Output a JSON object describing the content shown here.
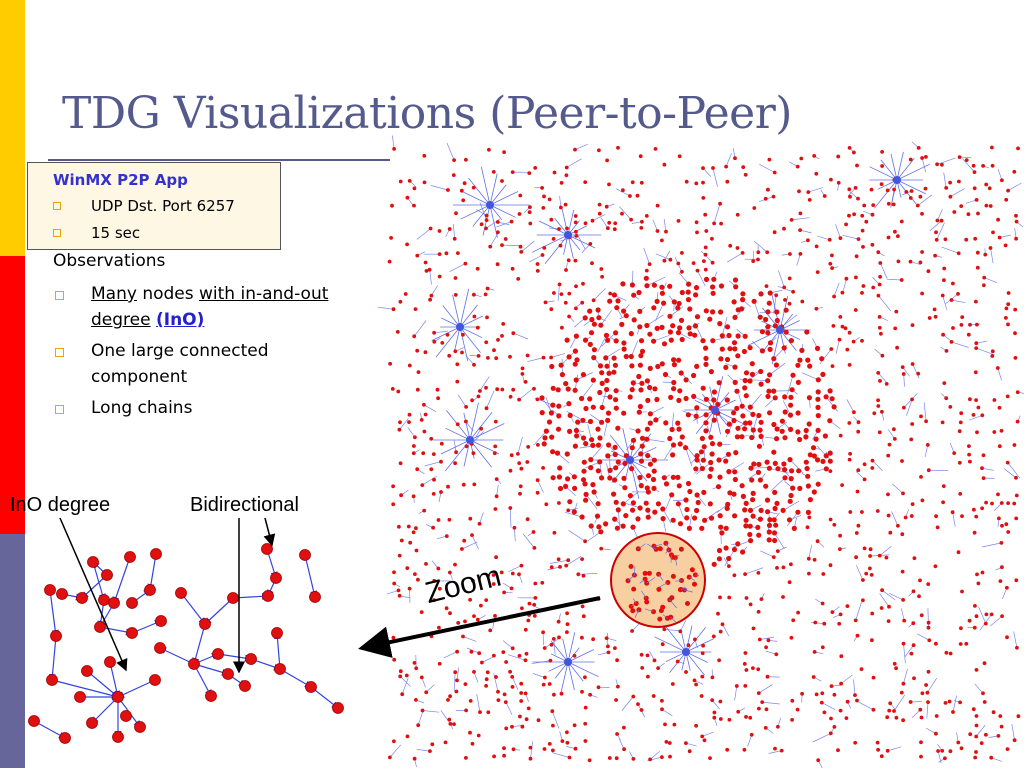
{
  "slide": {
    "title": "TDG Visualizations (Peer-to-Peer)",
    "accent_colors": {
      "yellow": "#ffcc00",
      "red": "#ff0000",
      "blue": "#66669a",
      "title": "#555a8c",
      "node": "#e01010",
      "edge": "#3344dd",
      "zoom_circle": "#f8cfa0"
    }
  },
  "infobox": {
    "heading": "WinMX P2P App",
    "items": [
      "UDP Dst. Port 6257",
      "15 sec"
    ]
  },
  "observations": {
    "heading": "Observations",
    "item1": {
      "part1": "Many",
      "part2": " nodes ",
      "part3": "with in-and-out degree",
      "part4": " ",
      "part5": "(InO)"
    },
    "item2": "One large connected component",
    "item3": "Long chains"
  },
  "labels": {
    "ino_degree": "InO degree",
    "bidirectional": "Bidirectional",
    "zoom": "Zoom"
  }
}
